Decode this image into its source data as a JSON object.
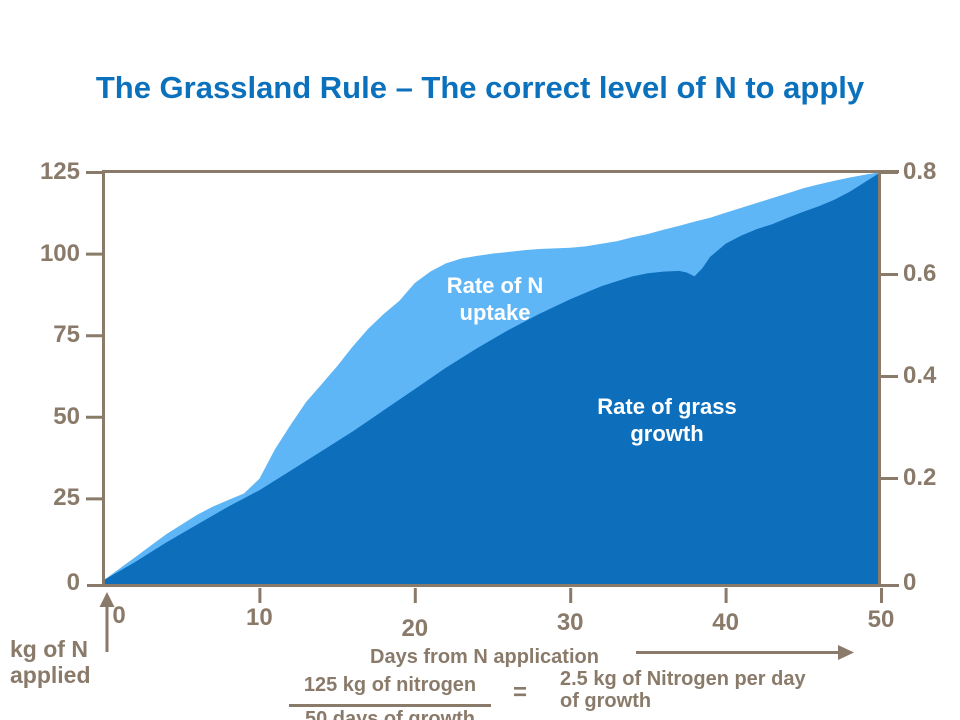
{
  "title": "The Grassland Rule – The correct level of N to apply",
  "colors": {
    "title_blue": "#0c71bc",
    "axis_brown": "#8a7a6a",
    "uptake_light_blue": "#5eb6f7",
    "growth_dark_blue": "#0d6ebc",
    "area_label_white": "#ffffff"
  },
  "labels": {
    "uptake_line1": "Rate of N",
    "uptake_line2": "uptake",
    "growth_line1": "Rate of grass",
    "growth_line2": "growth"
  },
  "axis_captions": {
    "y_line1": "kg of N",
    "y_line2": "applied",
    "x": "Days from N application"
  },
  "formula": {
    "numerator": "125 kg of nitrogen",
    "denominator": "50 days of growth",
    "equals": "=",
    "result_line1": "2.5 kg of Nitrogen per day",
    "result_line2": "of growth"
  },
  "chart_data": {
    "type": "area",
    "title": "The Grassland Rule – The correct level of N to apply",
    "xlabel": "Days from N application",
    "ylabel_left": "kg of N applied",
    "x_ticks": [
      0,
      10,
      20,
      30,
      40,
      50
    ],
    "y_left_ticks": [
      0,
      25,
      50,
      75,
      100,
      125
    ],
    "y_right_ticks": [
      0,
      0.2,
      0.4,
      0.6,
      0.8
    ],
    "x_range": [
      0,
      50
    ],
    "y_left_range": [
      0,
      125
    ],
    "y_right_range": [
      0,
      0.8
    ],
    "grid": false,
    "legend": "labels drawn inside areas",
    "series": [
      {
        "name": "Rate of N uptake",
        "axis": "left",
        "units": "kg of N",
        "points": [
          [
            0,
            0
          ],
          [
            1,
            3.5
          ],
          [
            2,
            7
          ],
          [
            3,
            10.5
          ],
          [
            4,
            14
          ],
          [
            5,
            17
          ],
          [
            6,
            20
          ],
          [
            7,
            22.5
          ],
          [
            8,
            24.5
          ],
          [
            9,
            26.5
          ],
          [
            10,
            31
          ],
          [
            11,
            40
          ],
          [
            12,
            47.5
          ],
          [
            13,
            54.5
          ],
          [
            14,
            60
          ],
          [
            15,
            65.5
          ],
          [
            16,
            71.5
          ],
          [
            17,
            77
          ],
          [
            18,
            81.5
          ],
          [
            19,
            85.5
          ],
          [
            20,
            91
          ],
          [
            21,
            94.5
          ],
          [
            22,
            97
          ],
          [
            23,
            98.5
          ],
          [
            24,
            99.3
          ],
          [
            25,
            100
          ],
          [
            26,
            100.5
          ],
          [
            27,
            101
          ],
          [
            28,
            101.4
          ],
          [
            29,
            101.6
          ],
          [
            30,
            101.8
          ],
          [
            31,
            102.2
          ],
          [
            32,
            103
          ],
          [
            33,
            103.8
          ],
          [
            34,
            105
          ],
          [
            35,
            106
          ],
          [
            36,
            107.3
          ],
          [
            37,
            108.5
          ],
          [
            38,
            109.8
          ],
          [
            39,
            111
          ],
          [
            40,
            112.5
          ],
          [
            41,
            114
          ],
          [
            42,
            115.5
          ],
          [
            43,
            117
          ],
          [
            44,
            118.5
          ],
          [
            45,
            120
          ],
          [
            46,
            121.2
          ],
          [
            47,
            122.3
          ],
          [
            48,
            123.3
          ],
          [
            49,
            124.2
          ],
          [
            50,
            125
          ]
        ]
      },
      {
        "name": "Rate of grass growth",
        "axis": "left",
        "units": "kg of N",
        "points": [
          [
            0,
            0
          ],
          [
            2,
            5.5
          ],
          [
            4,
            11.5
          ],
          [
            6,
            17
          ],
          [
            8,
            22.5
          ],
          [
            10,
            27.5
          ],
          [
            12,
            33.5
          ],
          [
            14,
            39.5
          ],
          [
            16,
            45.5
          ],
          [
            18,
            52
          ],
          [
            20,
            58.5
          ],
          [
            22,
            65
          ],
          [
            24,
            71
          ],
          [
            26,
            76.5
          ],
          [
            28,
            81.5
          ],
          [
            30,
            86
          ],
          [
            31,
            88
          ],
          [
            32,
            90
          ],
          [
            33,
            91.5
          ],
          [
            34,
            93
          ],
          [
            35,
            94
          ],
          [
            36,
            94.5
          ],
          [
            37,
            94.7
          ],
          [
            37.5,
            94.2
          ],
          [
            38,
            93
          ],
          [
            38.5,
            95.5
          ],
          [
            39,
            99
          ],
          [
            40,
            103
          ],
          [
            41,
            105.5
          ],
          [
            42,
            107.5
          ],
          [
            43,
            109
          ],
          [
            44,
            111
          ],
          [
            45,
            112.8
          ],
          [
            46,
            114.5
          ],
          [
            47,
            116.5
          ],
          [
            48,
            119
          ],
          [
            49,
            122
          ],
          [
            50,
            125
          ]
        ]
      }
    ]
  }
}
